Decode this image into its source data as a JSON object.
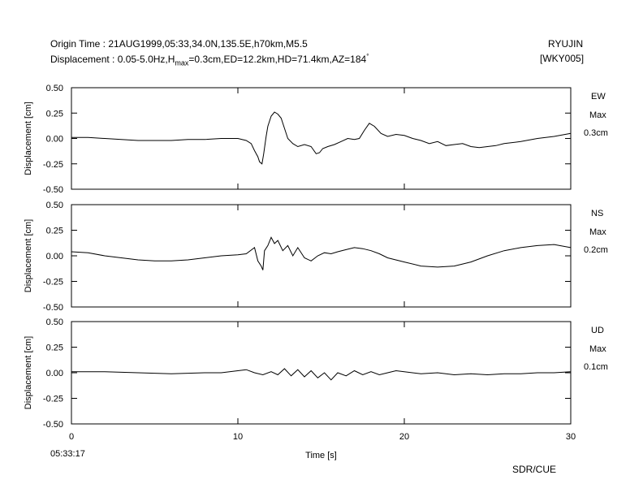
{
  "header": {
    "origin_prefix": "Origin Time : ",
    "origin": "21AUG1999,05:33,34.0N,135.5E,h70km,M5.5",
    "disp_prefix": "Displacement : ",
    "disp_a": "0.05-5.0Hz,H",
    "disp_sub": "max",
    "disp_b": "=0.3cm,ED=12.2km,HD=71.4km,AZ=184",
    "disp_deg": "°",
    "station": "RYUJIN",
    "code": "[WKY005]"
  },
  "footer": {
    "start_time": "05:33:17",
    "credit": "SDR/CUE"
  },
  "chart_data": {
    "type": "line",
    "xlabel": "Time [s]",
    "xlim": [
      0,
      30
    ],
    "xticks": [
      0,
      10,
      20,
      30
    ],
    "xtick_labels": [
      "0",
      "10",
      "20",
      "30"
    ],
    "ylabel": "Displacement [cm]",
    "ylim": [
      -0.5,
      0.5
    ],
    "yticks": [
      -0.5,
      -0.25,
      0,
      0.25,
      0.5
    ],
    "ytick_labels": [
      "-0.50",
      "-0.25",
      "0.00",
      "0.25",
      "0.50"
    ],
    "series": [
      {
        "name": "EW",
        "max_label": "Max",
        "max_value": "0.3cm",
        "x": [
          0,
          1,
          2,
          3,
          4,
          5,
          6,
          7,
          8,
          9,
          10,
          10.5,
          10.8,
          11.0,
          11.2,
          11.3,
          11.45,
          11.55,
          11.7,
          11.8,
          12.0,
          12.2,
          12.4,
          12.6,
          12.8,
          13.0,
          13.3,
          13.6,
          14.0,
          14.4,
          14.7,
          14.9,
          15.1,
          15.4,
          15.8,
          16.2,
          16.6,
          17.0,
          17.3,
          17.6,
          17.9,
          18.2,
          18.6,
          19.0,
          19.5,
          20.0,
          20.5,
          21.0,
          21.5,
          22.0,
          22.5,
          23.0,
          23.5,
          24.0,
          24.5,
          25.0,
          25.5,
          26,
          27,
          28,
          29,
          30
        ],
        "y": [
          0.01,
          0.01,
          0.0,
          -0.01,
          -0.02,
          -0.02,
          -0.02,
          -0.01,
          -0.01,
          0.0,
          0.0,
          -0.02,
          -0.05,
          -0.12,
          -0.18,
          -0.23,
          -0.25,
          -0.15,
          0.02,
          0.12,
          0.22,
          0.26,
          0.24,
          0.2,
          0.1,
          0.0,
          -0.05,
          -0.08,
          -0.06,
          -0.08,
          -0.15,
          -0.14,
          -0.1,
          -0.08,
          -0.06,
          -0.03,
          0.0,
          -0.01,
          0.0,
          0.08,
          0.15,
          0.12,
          0.05,
          0.02,
          0.04,
          0.03,
          0.0,
          -0.02,
          -0.05,
          -0.03,
          -0.07,
          -0.06,
          -0.05,
          -0.08,
          -0.09,
          -0.08,
          -0.07,
          -0.05,
          -0.03,
          0.0,
          0.02,
          0.05
        ]
      },
      {
        "name": "NS",
        "max_label": "Max",
        "max_value": "0.2cm",
        "x": [
          0,
          1,
          2,
          3,
          4,
          5,
          6,
          7,
          8,
          9,
          10,
          10.5,
          11.0,
          11.2,
          11.4,
          11.5,
          11.6,
          11.8,
          12.0,
          12.2,
          12.4,
          12.7,
          13.0,
          13.3,
          13.6,
          14.0,
          14.4,
          14.8,
          15.2,
          15.6,
          16.0,
          16.5,
          17,
          17.5,
          18,
          18.5,
          19,
          20,
          21,
          22,
          23,
          24,
          25,
          26,
          27,
          28,
          29,
          30
        ],
        "y": [
          0.04,
          0.03,
          0.0,
          -0.02,
          -0.04,
          -0.05,
          -0.05,
          -0.04,
          -0.02,
          0.0,
          0.01,
          0.02,
          0.08,
          -0.05,
          -0.1,
          -0.14,
          0.05,
          0.1,
          0.18,
          0.12,
          0.15,
          0.05,
          0.1,
          0.0,
          0.08,
          -0.02,
          -0.05,
          0.0,
          0.03,
          0.02,
          0.04,
          0.06,
          0.08,
          0.07,
          0.05,
          0.02,
          -0.02,
          -0.06,
          -0.1,
          -0.11,
          -0.1,
          -0.06,
          0.0,
          0.05,
          0.08,
          0.1,
          0.11,
          0.08
        ]
      },
      {
        "name": "UD",
        "max_label": "Max",
        "max_value": "0.1cm",
        "x": [
          0,
          2,
          4,
          6,
          8,
          9,
          10,
          10.5,
          11,
          11.5,
          12,
          12.4,
          12.8,
          13.2,
          13.6,
          14,
          14.4,
          14.8,
          15.2,
          15.6,
          16,
          16.5,
          17,
          17.5,
          18,
          18.5,
          19,
          19.5,
          20,
          21,
          22,
          23,
          24,
          25,
          26,
          27,
          28,
          29,
          30
        ],
        "y": [
          0.01,
          0.01,
          0.0,
          -0.01,
          0.0,
          0.0,
          0.02,
          0.03,
          0.0,
          -0.02,
          0.01,
          -0.02,
          0.04,
          -0.03,
          0.03,
          -0.04,
          0.02,
          -0.05,
          0.0,
          -0.07,
          0.0,
          -0.03,
          0.02,
          -0.02,
          0.01,
          -0.02,
          0.0,
          0.02,
          0.01,
          -0.01,
          0.0,
          -0.02,
          -0.01,
          -0.02,
          -0.01,
          -0.01,
          0.0,
          0.0,
          0.01
        ]
      }
    ]
  }
}
